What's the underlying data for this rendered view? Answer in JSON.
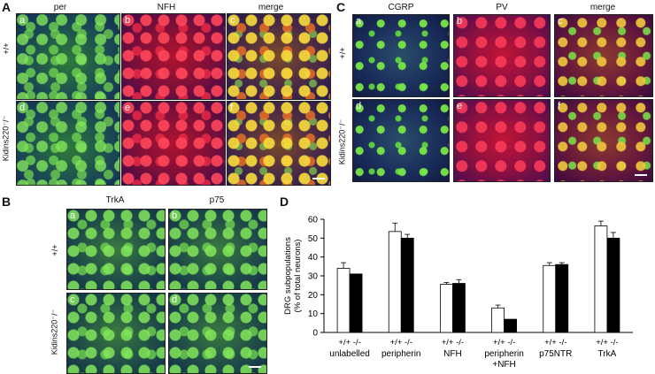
{
  "panelA": {
    "letter": "A",
    "columns": [
      "per",
      "NFH",
      "merge"
    ],
    "rows": [
      "+/+",
      "Kidins220⁻/⁻"
    ],
    "subpanels": [
      "a",
      "b",
      "c",
      "d",
      "e",
      "f"
    ]
  },
  "panelC": {
    "letter": "C",
    "columns": [
      "CGRP",
      "PV",
      "merge"
    ],
    "rows": [
      "+/+",
      "Kidins220⁻/⁻"
    ],
    "subpanels": [
      "a",
      "b",
      "c",
      "d",
      "e",
      "f"
    ]
  },
  "panelB": {
    "letter": "B",
    "columns": [
      "TrkA",
      "p75"
    ],
    "rows": [
      "+/+",
      "Kidins220⁻/⁻"
    ],
    "subpanels": [
      "a",
      "b",
      "c",
      "d"
    ]
  },
  "panelD": {
    "letter": "D"
  },
  "chart_data": {
    "type": "bar",
    "ylabel": "DRG subpopulations (% of total neurons)",
    "ylim": [
      0,
      60
    ],
    "yticks": [
      0,
      10,
      20,
      30,
      40,
      50,
      60
    ],
    "genotype_labels": [
      "+/+",
      "-/-"
    ],
    "categories": [
      "unlabelled",
      "peripherin",
      "NFH",
      "peripherin +NFH",
      "p75NTR",
      "TrkA"
    ],
    "series": [
      {
        "values": [
          34,
          53.5,
          25.5,
          13,
          35.5,
          56.5
        ],
        "errors": [
          3,
          4.5,
          1,
          1.5,
          1.5,
          2.5
        ],
        "color": "#ffffff"
      },
      {
        "values": [
          31,
          50,
          26,
          7,
          36,
          50
        ],
        "errors": [
          0,
          2,
          2,
          0,
          1,
          3
        ],
        "color": "#000000"
      }
    ],
    "grid": false,
    "legend": "none"
  }
}
